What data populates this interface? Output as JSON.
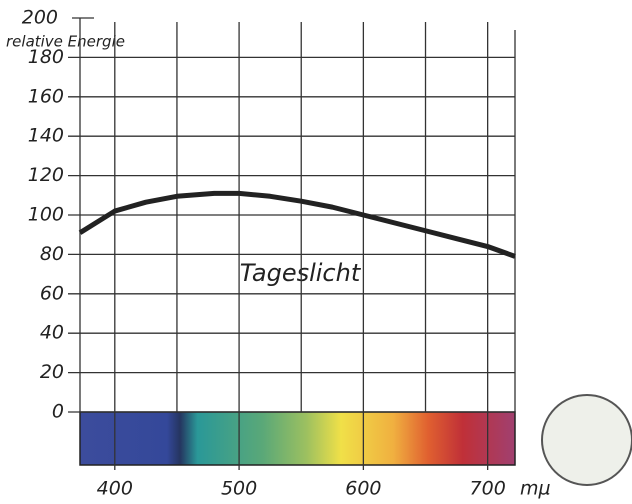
{
  "chart_data": {
    "type": "line",
    "y_label": "relative Energie",
    "x_label": "mµ",
    "annotation": "Tageslicht",
    "xlim": [
      372,
      722
    ],
    "ylim": [
      0,
      200
    ],
    "xticks": [
      400,
      500,
      600,
      700
    ],
    "xminor": [
      450,
      550,
      650
    ],
    "yticks": [
      0,
      20,
      40,
      60,
      80,
      100,
      120,
      140,
      160,
      180,
      200
    ],
    "grid": true,
    "series": [
      {
        "color": "#222222",
        "x": [
          372,
          400,
          425,
          450,
          480,
          500,
          525,
          550,
          575,
          600,
          625,
          650,
          675,
          700,
          722
        ],
        "values": [
          91,
          102,
          106.5,
          109.5,
          111,
          111,
          109.5,
          107,
          104,
          100,
          96,
          92,
          88,
          84,
          79
        ]
      }
    ]
  }
}
